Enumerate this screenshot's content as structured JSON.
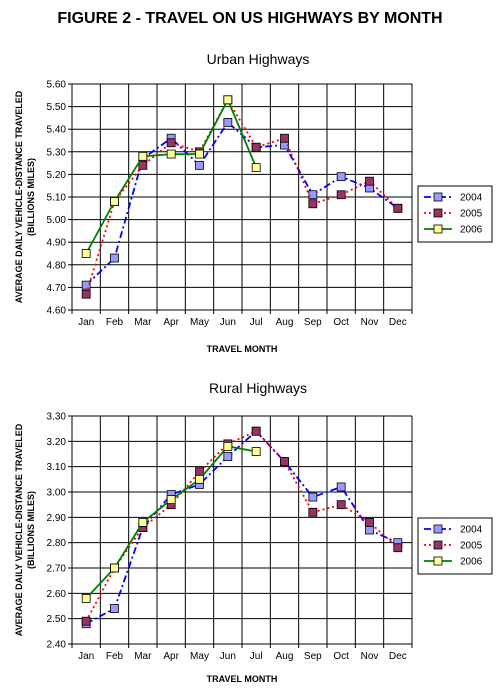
{
  "figure_title": "FIGURE 2 - TRAVEL ON US HIGHWAYS BY MONTH",
  "chart_data": [
    {
      "type": "line",
      "title": "Urban Highways",
      "xlabel": "TRAVEL MONTH",
      "ylabel": "AVERAGE DAILY VEHICLE-DISTANCE TRAVELED",
      "ylabel2": "(BILLIONS MILES)",
      "categories": [
        "Jan",
        "Feb",
        "Mar",
        "Apr",
        "May",
        "Jun",
        "Jul",
        "Aug",
        "Sep",
        "Oct",
        "Nov",
        "Dec"
      ],
      "ylim": [
        4.6,
        5.6
      ],
      "yticks": [
        "4.60",
        "4.70",
        "4.80",
        "4.90",
        "5.00",
        "5.10",
        "5.20",
        "5.30",
        "5.40",
        "5.50",
        "5.60"
      ],
      "grid": true,
      "legend_position": "right",
      "series": [
        {
          "name": "2004",
          "color": "#0000ff",
          "marker": "#9999ff",
          "dash": "dash-dot",
          "values": [
            4.71,
            4.83,
            5.27,
            5.36,
            5.24,
            5.43,
            5.32,
            5.33,
            5.11,
            5.19,
            5.14,
            5.05
          ]
        },
        {
          "name": "2005",
          "color": "#ff0000",
          "marker": "#993366",
          "dash": "dotted",
          "values": [
            4.67,
            5.08,
            5.24,
            5.34,
            5.3,
            5.53,
            5.32,
            5.36,
            5.07,
            5.11,
            5.17,
            5.05
          ]
        },
        {
          "name": "2006",
          "color": "#008000",
          "marker": "#ffff99",
          "dash": "solid",
          "values": [
            4.85,
            5.08,
            5.28,
            5.29,
            5.29,
            5.53,
            5.23,
            null,
            null,
            null,
            null,
            null
          ]
        }
      ]
    },
    {
      "type": "line",
      "title": "Rural Highways",
      "xlabel": "TRAVEL MONTH",
      "ylabel": "AVERAGE DAILY VEHICLE-DISTANCE TRAVELED",
      "ylabel2": "(BILLIONS MILES)",
      "categories": [
        "Jan",
        "Feb",
        "Mar",
        "Apr",
        "May",
        "Jun",
        "Jul",
        "Aug",
        "Sep",
        "Oct",
        "Nov",
        "Dec"
      ],
      "ylim": [
        2.4,
        3.3
      ],
      "yticks": [
        "2.40",
        "2.50",
        "2.60",
        "2.70",
        "2.80",
        "2.90",
        "3.00",
        "3.10",
        "3.20",
        "3.30"
      ],
      "grid": true,
      "legend_position": "right",
      "series": [
        {
          "name": "2004",
          "color": "#0000ff",
          "marker": "#9999ff",
          "dash": "dash-dot",
          "values": [
            2.48,
            2.54,
            2.86,
            2.99,
            3.03,
            3.14,
            3.24,
            3.12,
            2.98,
            3.02,
            2.85,
            2.8
          ]
        },
        {
          "name": "2005",
          "color": "#ff0000",
          "marker": "#993366",
          "dash": "dotted",
          "values": [
            2.49,
            2.7,
            2.86,
            2.95,
            3.08,
            3.19,
            3.24,
            3.12,
            2.92,
            2.95,
            2.88,
            2.78
          ]
        },
        {
          "name": "2006",
          "color": "#008000",
          "marker": "#ffff99",
          "dash": "solid",
          "values": [
            2.58,
            2.7,
            2.88,
            2.97,
            3.05,
            3.18,
            3.16,
            null,
            null,
            null,
            null,
            null
          ]
        }
      ]
    }
  ]
}
